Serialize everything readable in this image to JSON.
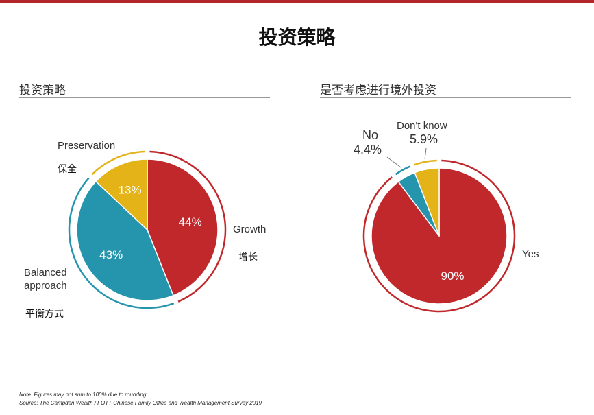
{
  "page": {
    "title": "投资策略",
    "note": "Note: Figures may not sum to 100% due to rounding",
    "source": "Source: The Campden Wealth / FOTT Chinese Family Office and Wealth Management Survey 2019"
  },
  "chart_data": [
    {
      "type": "pie",
      "title": "投资策略",
      "slices": [
        {
          "name": "Growth",
          "name_cn": "增长",
          "value": 44,
          "label": "44%",
          "color": "#c0282b"
        },
        {
          "name": "Balanced approach",
          "name_cn": "平衡方式",
          "value": 43,
          "label": "43%",
          "color": "#2495ad"
        },
        {
          "name": "Preservation",
          "name_cn": "保全",
          "value": 13,
          "label": "13%",
          "color": "#e3b318"
        }
      ]
    },
    {
      "type": "pie",
      "title": "是否考虑进行境外投资",
      "slices": [
        {
          "name": "Yes",
          "value": 90,
          "label": "90%",
          "color": "#c0282b"
        },
        {
          "name": "No",
          "value": 4.4,
          "label": "4.4%",
          "color": "#2495ad"
        },
        {
          "name": "Don't know",
          "value": 5.9,
          "label": "5.9%",
          "color": "#e3b318"
        }
      ]
    }
  ]
}
